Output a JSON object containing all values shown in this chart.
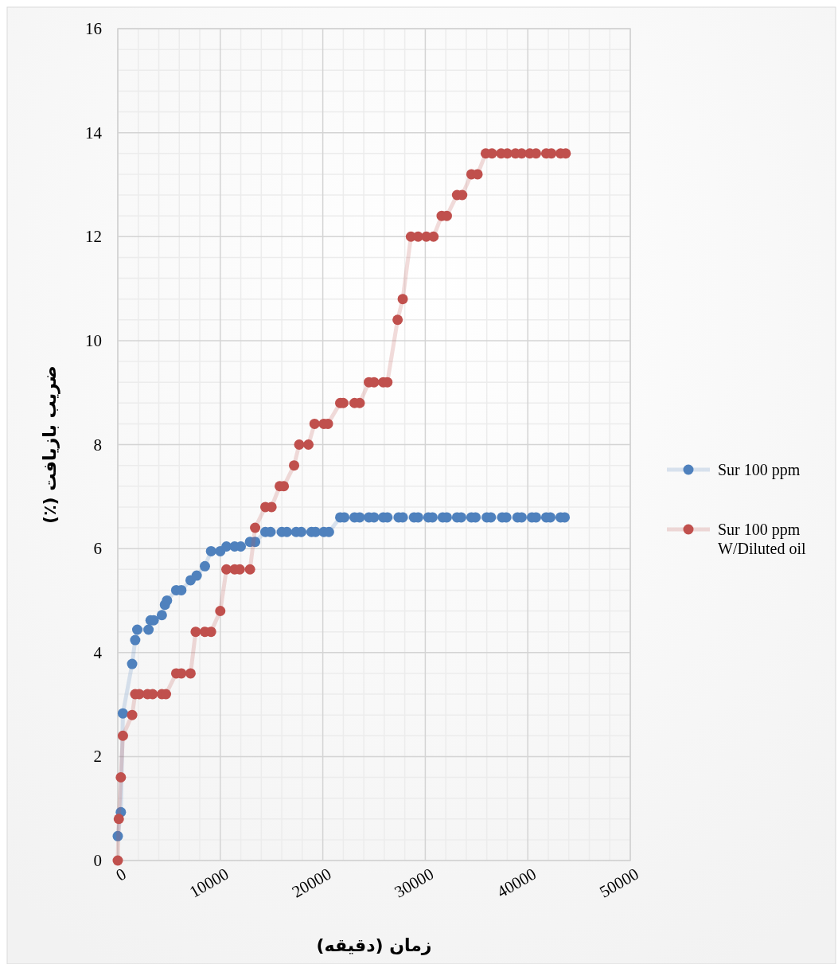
{
  "chart_data": {
    "type": "line",
    "xlabel": "زمان (دقیقه)",
    "ylabel": "ضریب بازیافت (٪)",
    "xlim": [
      0,
      50000
    ],
    "xticks": [
      0,
      10000,
      20000,
      30000,
      40000,
      50000
    ],
    "ylim": [
      0,
      16
    ],
    "yticks": [
      0,
      2,
      4,
      6,
      8,
      10,
      12,
      14,
      16
    ],
    "grid": true,
    "legend": "right",
    "marker": "circle",
    "line_style": "solid",
    "series": [
      {
        "name": "Sur 100 ppm",
        "color": "#4f81bd",
        "x": [
          0,
          300,
          500,
          1400,
          1700,
          1900,
          3000,
          3200,
          3500,
          4300,
          4600,
          4800,
          5700,
          6200,
          7100,
          7700,
          8500,
          9100,
          10000,
          10600,
          11400,
          12000,
          12900,
          13400,
          14400,
          14900,
          16000,
          16500,
          17400,
          17900,
          18900,
          19300,
          20100,
          20600,
          21700,
          22100,
          23100,
          23600,
          24500,
          25000,
          25900,
          26300,
          27400,
          27800,
          28900,
          29300,
          30300,
          30700,
          31700,
          32100,
          33100,
          33500,
          34500,
          34900,
          36000,
          36400,
          37500,
          37900,
          39000,
          39400,
          40400,
          40800,
          41800,
          42200,
          43200,
          43600
        ],
        "values": [
          0.47,
          0.93,
          2.83,
          3.78,
          4.24,
          4.44,
          4.44,
          4.62,
          4.62,
          4.72,
          4.92,
          5.0,
          5.2,
          5.2,
          5.39,
          5.48,
          5.66,
          5.95,
          5.95,
          6.04,
          6.04,
          6.04,
          6.13,
          6.13,
          6.32,
          6.32,
          6.32,
          6.32,
          6.32,
          6.32,
          6.32,
          6.32,
          6.32,
          6.32,
          6.6,
          6.6,
          6.6,
          6.6,
          6.6,
          6.6,
          6.6,
          6.6,
          6.6,
          6.6,
          6.6,
          6.6,
          6.6,
          6.6,
          6.6,
          6.6,
          6.6,
          6.6,
          6.6,
          6.6,
          6.6,
          6.6,
          6.6,
          6.6,
          6.6,
          6.6,
          6.6,
          6.6,
          6.6,
          6.6,
          6.6,
          6.6
        ]
      },
      {
        "name": "Sur 100 ppm W/Diluted oil",
        "color": "#c0504d",
        "x": [
          0,
          100,
          300,
          500,
          1400,
          1700,
          2100,
          2900,
          3400,
          4300,
          4700,
          5700,
          6200,
          7100,
          7600,
          8500,
          9100,
          10000,
          10600,
          11400,
          11900,
          12900,
          13400,
          14400,
          15000,
          15800,
          16200,
          17200,
          17700,
          18600,
          19200,
          20100,
          20500,
          21700,
          22000,
          23100,
          23600,
          24500,
          25000,
          25900,
          26300,
          27300,
          27800,
          28600,
          29300,
          30100,
          30800,
          31600,
          32100,
          33100,
          33600,
          34500,
          35100,
          35900,
          36500,
          37400,
          38000,
          38800,
          39400,
          40200,
          40800,
          41800,
          42300,
          43200,
          43700
        ],
        "values": [
          0,
          0.8,
          1.6,
          2.4,
          2.8,
          3.2,
          3.2,
          3.2,
          3.2,
          3.2,
          3.2,
          3.6,
          3.6,
          3.6,
          4.4,
          4.4,
          4.4,
          4.8,
          5.6,
          5.6,
          5.6,
          5.6,
          6.4,
          6.8,
          6.8,
          7.2,
          7.2,
          7.6,
          8.0,
          8.0,
          8.4,
          8.4,
          8.4,
          8.8,
          8.8,
          8.8,
          8.8,
          9.2,
          9.2,
          9.2,
          9.2,
          10.4,
          10.8,
          12.0,
          12.0,
          12.0,
          12.0,
          12.4,
          12.4,
          12.8,
          12.8,
          13.2,
          13.2,
          13.6,
          13.6,
          13.6,
          13.6,
          13.6,
          13.6,
          13.6,
          13.6,
          13.6,
          13.6,
          13.6,
          13.6
        ]
      }
    ]
  }
}
